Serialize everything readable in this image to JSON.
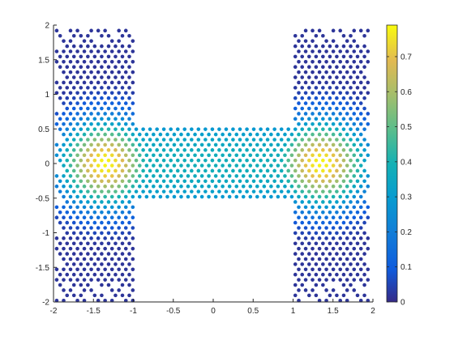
{
  "chart_data": {
    "type": "scatter",
    "title": "",
    "xlabel": "",
    "ylabel": "",
    "xlim": [
      -2,
      2
    ],
    "ylim": [
      -2,
      2
    ],
    "xticks": [
      -2,
      -1.5,
      -1,
      -0.5,
      0,
      0.5,
      1,
      1.5,
      2
    ],
    "yticks": [
      -2,
      -1.5,
      -1,
      -0.5,
      0,
      0.5,
      1,
      1.5,
      2
    ],
    "xtick_labels": [
      "-2",
      "-1.5",
      "-1",
      "-0.5",
      "0",
      "0.5",
      "1",
      "1.5",
      "2"
    ],
    "ytick_labels": [
      "-2",
      "-1.5",
      "-1",
      "-0.5",
      "0",
      "0.5",
      "1",
      "1.5",
      "2"
    ],
    "grid": false,
    "colormap": "parula",
    "colorbar": {
      "range": [
        0,
        0.79
      ],
      "ticks": [
        0,
        0.1,
        0.2,
        0.3,
        0.4,
        0.5,
        0.6,
        0.7
      ],
      "tick_labels": [
        "0",
        "0.1",
        "0.2",
        "0.3",
        "0.4",
        "0.5",
        "0.6",
        "0.7"
      ]
    },
    "domain": "H-shaped region: |x| in [1, 2] for y in [-2, 2], joined by a bar |x| <= 1 for |y| <= 0.5",
    "peaks": [
      {
        "x": -1.35,
        "y": 0.0,
        "value": 0.78
      },
      {
        "x": 1.35,
        "y": 0.0,
        "value": 0.78
      }
    ],
    "bridge_value": 0.38,
    "edge_value": 0.02,
    "points": []
  }
}
